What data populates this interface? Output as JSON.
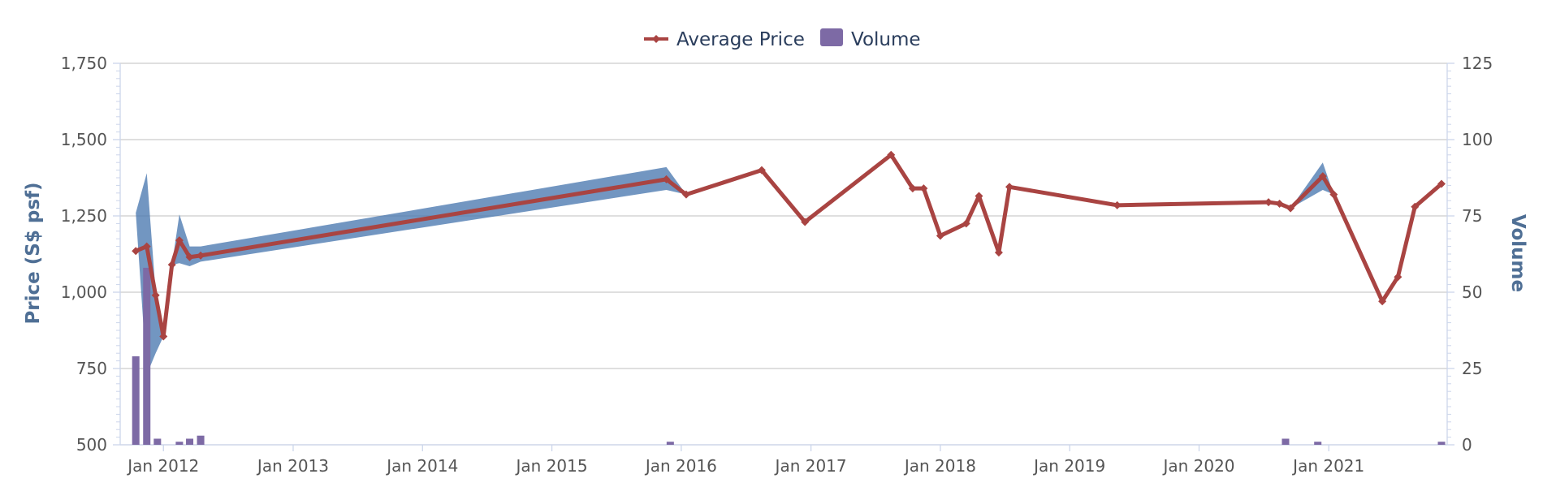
{
  "chart_data": {
    "type": "line",
    "title": "",
    "legend": {
      "position": "top-center",
      "items": [
        {
          "label": "Average Price",
          "color": "#a94442",
          "marker": "line-diamond"
        },
        {
          "label": "Volume",
          "color": "#7d6aa5",
          "marker": "square"
        }
      ]
    },
    "y_left": {
      "label": "Price (S$ psf)",
      "ticks": [
        "500",
        "750",
        "1,000",
        "1,250",
        "1,500",
        "1,750"
      ],
      "range": [
        500,
        1750
      ]
    },
    "y_right": {
      "label": "Volume",
      "ticks": [
        "0",
        "25",
        "50",
        "75",
        "100",
        "125"
      ],
      "range": [
        0,
        125
      ]
    },
    "x_axis": {
      "ticks": [
        "Jan 2012",
        "Jan 2013",
        "Jan 2014",
        "Jan 2015",
        "Jan 2016",
        "Jan 2017",
        "Jan 2018",
        "Jan 2019",
        "Jan 2020",
        "Jan 2021"
      ],
      "range": [
        "2011-09-01",
        "2021-12-01"
      ]
    },
    "grid": true,
    "colors": {
      "price_line": "#a94442",
      "range_band": "#4a78b0",
      "volume_bars": "#7d6aa5",
      "grid": "#cccccc",
      "axis": "#ccd6eb"
    },
    "series": [
      {
        "name": "Average Price",
        "type": "line",
        "x": [
          "2011-10-15",
          "2011-11-15",
          "2011-12-10",
          "2012-01-01",
          "2012-01-25",
          "2012-02-15",
          "2012-03-15",
          "2012-04-15",
          "2015-11-20",
          "2016-01-15",
          "2016-08-15",
          "2016-12-15",
          "2017-08-15",
          "2017-10-15",
          "2017-11-15",
          "2018-01-01",
          "2018-03-15",
          "2018-04-20",
          "2018-06-15",
          "2018-07-15",
          "2019-05-15",
          "2020-07-15",
          "2020-08-15",
          "2020-09-15",
          "2020-12-15",
          "2021-01-15",
          "2021-06-01",
          "2021-07-15",
          "2021-09-01",
          "2021-11-15"
        ],
        "y": [
          1135,
          1150,
          990,
          855,
          1090,
          1170,
          1115,
          1120,
          1370,
          1320,
          1400,
          1230,
          1450,
          1340,
          1340,
          1185,
          1225,
          1315,
          1130,
          1345,
          1285,
          1295,
          1290,
          1275,
          1380,
          1320,
          970,
          1050,
          1280,
          1355
        ]
      },
      {
        "name": "Price range",
        "type": "arearange",
        "x": [
          "2011-10-15",
          "2011-11-15",
          "2011-12-10",
          "2012-01-01",
          "2012-01-25",
          "2012-02-15",
          "2012-03-15",
          "2012-04-15",
          "2015-11-20",
          "2016-01-15",
          "2020-09-15",
          "2020-12-15",
          "2021-01-15"
        ],
        "low": [
          1260,
          730,
          800,
          855,
          1090,
          1095,
          1085,
          1100,
          1335,
          1320,
          1275,
          1335,
          1320
        ],
        "high": [
          1260,
          1390,
          1000,
          855,
          1090,
          1255,
          1150,
          1150,
          1410,
          1320,
          1275,
          1425,
          1320
        ]
      },
      {
        "name": "Volume",
        "type": "column",
        "x": [
          "2011-10-15",
          "2011-11-15",
          "2011-12-15",
          "2012-02-15",
          "2012-03-15",
          "2012-04-15",
          "2015-12-01",
          "2020-09-01",
          "2020-12-01",
          "2021-11-15"
        ],
        "y": [
          29,
          58,
          2,
          1,
          2,
          3,
          1,
          2,
          1,
          1
        ]
      }
    ]
  }
}
